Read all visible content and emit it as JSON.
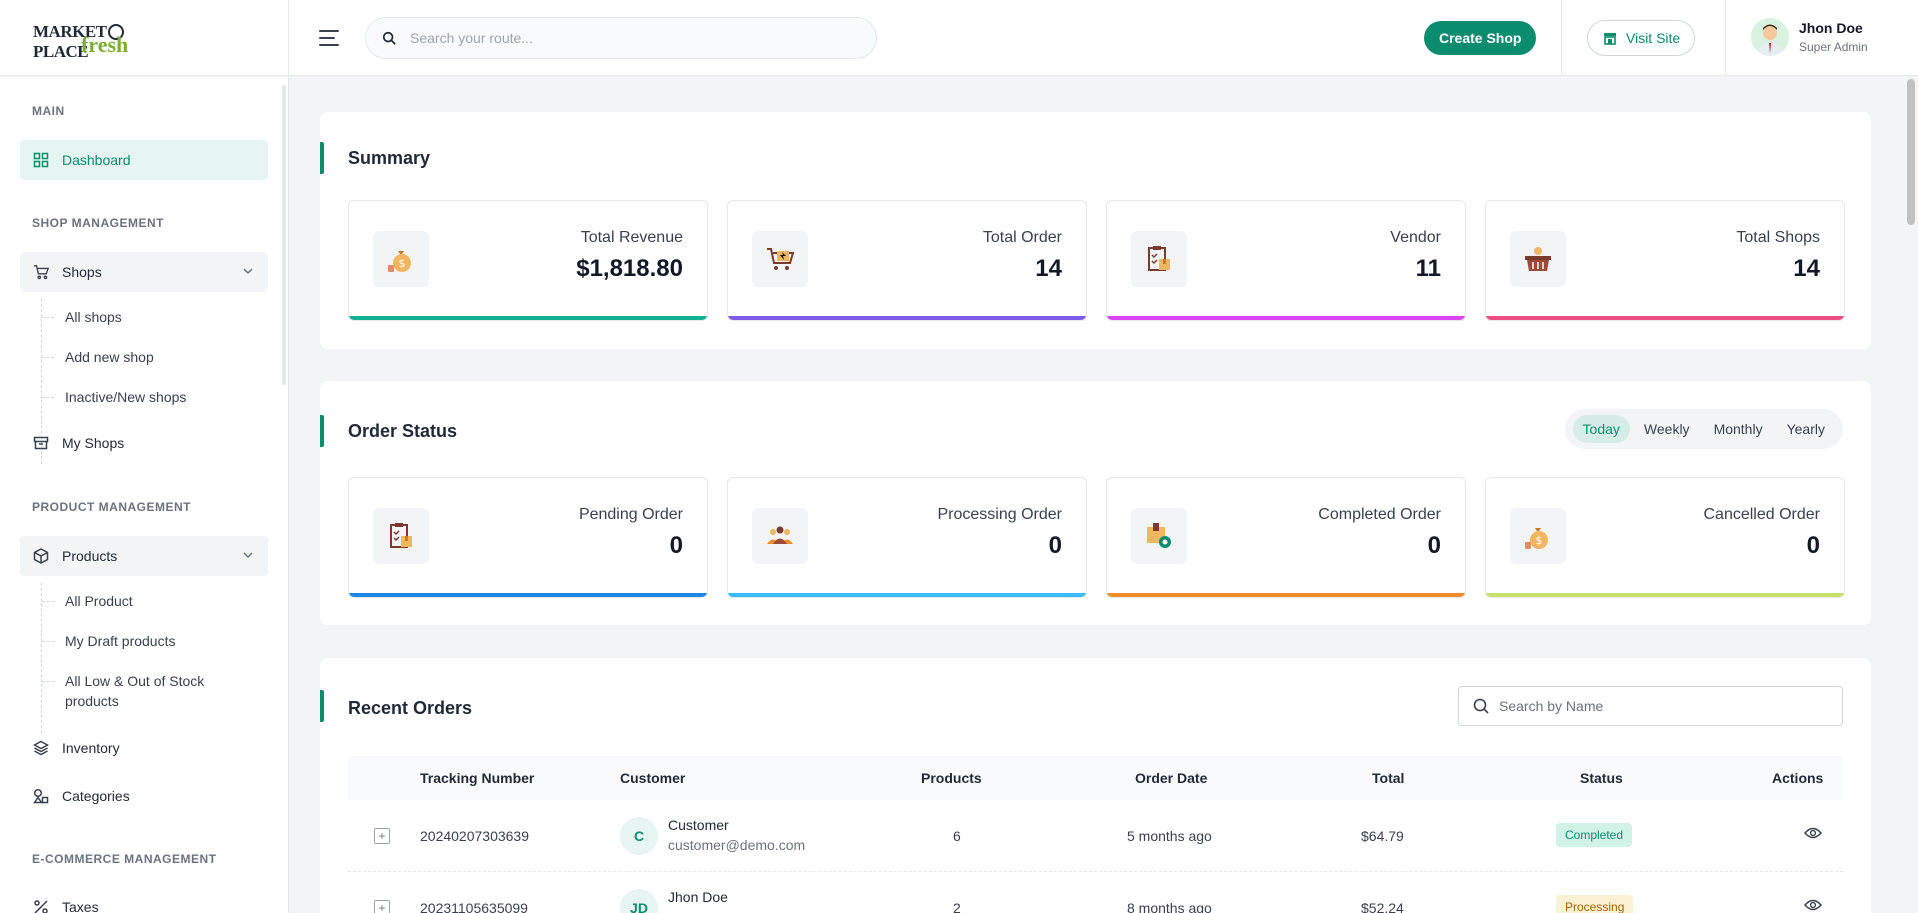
{
  "header": {
    "logo_line1_a": "MARKET",
    "logo_line1_b": "PLACE",
    "logo_line2": "fresh",
    "search_placeholder": "Search your route...",
    "create_shop_label": "Create Shop",
    "visit_site_label": "Visit Site",
    "user_name": "Jhon Doe",
    "user_role": "Super Admin"
  },
  "sidebar": {
    "section_main": "MAIN",
    "dashboard": "Dashboard",
    "section_shop": "SHOP MANAGEMENT",
    "shops": "Shops",
    "shops_sub": [
      "All shops",
      "Add new shop",
      "Inactive/New shops"
    ],
    "my_shops": "My Shops",
    "section_product": "PRODUCT MANAGEMENT",
    "products": "Products",
    "products_sub": [
      "All Product",
      "My Draft products",
      "All Low & Out of Stock",
      "products"
    ],
    "inventory": "Inventory",
    "categories": "Categories",
    "section_ecommerce": "E-COMMERCE MANAGEMENT",
    "taxes": "Taxes"
  },
  "summary": {
    "title": "Summary",
    "cards": [
      {
        "label": "Total Revenue",
        "value": "$1,818.80",
        "color": "#10b091"
      },
      {
        "label": "Total Order",
        "value": "14",
        "color": "#7c5ce6"
      },
      {
        "label": "Vendor",
        "value": "11",
        "color": "#d946ef"
      },
      {
        "label": "Total Shops",
        "value": "14",
        "color": "#ec4f82"
      }
    ]
  },
  "order_status": {
    "title": "Order Status",
    "tabs": [
      "Today",
      "Weekly",
      "Monthly",
      "Yearly"
    ],
    "active_tab": "Today",
    "cards": [
      {
        "label": "Pending Order",
        "value": "0",
        "color": "#1e88e5"
      },
      {
        "label": "Processing Order",
        "value": "0",
        "color": "#38bdf8"
      },
      {
        "label": "Completed Order",
        "value": "0",
        "color": "#f28c28"
      },
      {
        "label": "Cancelled Order",
        "value": "0",
        "color": "#c6e06a"
      }
    ]
  },
  "recent_orders": {
    "title": "Recent Orders",
    "search_placeholder": "Search by Name",
    "columns": [
      "Tracking Number",
      "Customer",
      "Products",
      "Order Date",
      "Total",
      "Status",
      "Actions"
    ],
    "rows": [
      {
        "tracking": "20240207303639",
        "initials": "C",
        "name": "Customer",
        "email": "customer@demo.com",
        "products": "6",
        "date": "5 months ago",
        "total": "$64.79",
        "status": "Completed"
      },
      {
        "tracking": "20231105635099",
        "initials": "JD",
        "name": "Jhon Doe",
        "email": "",
        "products": "2",
        "date": "8 months ago",
        "total": "$52.24",
        "status": "Processing"
      }
    ]
  }
}
